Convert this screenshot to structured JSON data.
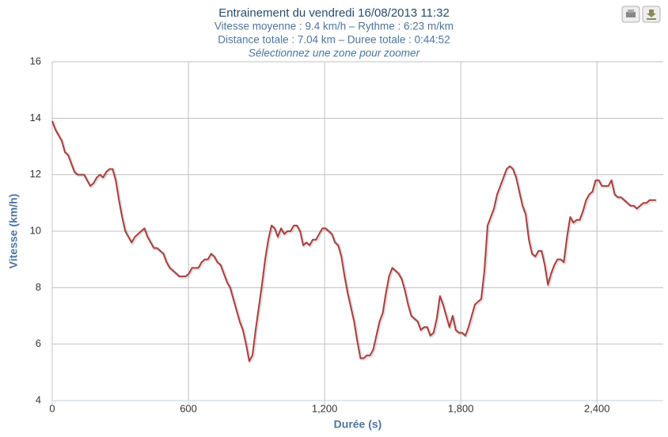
{
  "chart_data": {
    "type": "line",
    "title": "Entrainement du vendredi 16/08/2013 11:32",
    "subtitle": [
      "Vitesse moyenne : 9.4 km/h – Rythme : 6:23 m/km",
      "Distance totale : 7.04 km – Duree totale : 0:44:52",
      "Sélectionnez une zone pour zoomer"
    ],
    "x_label": "Durée (s)",
    "y_label": "Vitesse (km/h)",
    "xlim": [
      0,
      2692
    ],
    "xticks": [
      0,
      600,
      {
        "value": 1200,
        "label": "1,200"
      },
      {
        "value": 1800,
        "label": "1,800"
      },
      {
        "value": 2400,
        "label": "2,400"
      }
    ],
    "ylim": [
      4,
      16
    ],
    "yticks": [
      4,
      6,
      8,
      10,
      12,
      14,
      16
    ],
    "grid": true,
    "color": "#aa3f3c",
    "x": [
      0,
      14,
      28,
      42,
      56,
      70,
      84,
      98,
      112,
      126,
      140,
      154,
      168,
      182,
      196,
      210,
      224,
      238,
      252,
      266,
      280,
      294,
      308,
      322,
      336,
      350,
      364,
      378,
      392,
      406,
      420,
      434,
      448,
      462,
      476,
      490,
      504,
      518,
      532,
      546,
      560,
      574,
      588,
      602,
      616,
      630,
      644,
      658,
      672,
      686,
      700,
      714,
      728,
      742,
      756,
      770,
      784,
      798,
      812,
      826,
      840,
      854,
      868,
      882,
      896,
      910,
      924,
      938,
      952,
      966,
      980,
      994,
      1008,
      1022,
      1036,
      1050,
      1064,
      1078,
      1092,
      1106,
      1120,
      1134,
      1148,
      1162,
      1176,
      1190,
      1204,
      1218,
      1232,
      1246,
      1260,
      1274,
      1288,
      1302,
      1316,
      1330,
      1344,
      1358,
      1372,
      1386,
      1400,
      1414,
      1428,
      1442,
      1456,
      1470,
      1484,
      1498,
      1512,
      1526,
      1540,
      1554,
      1568,
      1582,
      1596,
      1610,
      1624,
      1638,
      1652,
      1666,
      1680,
      1694,
      1708,
      1722,
      1736,
      1750,
      1764,
      1778,
      1792,
      1806,
      1820,
      1834,
      1848,
      1862,
      1876,
      1890,
      1904,
      1918,
      1932,
      1946,
      1960,
      1974,
      1988,
      2002,
      2016,
      2030,
      2044,
      2058,
      2072,
      2086,
      2100,
      2114,
      2128,
      2142,
      2156,
      2170,
      2184,
      2198,
      2212,
      2226,
      2240,
      2254,
      2268,
      2282,
      2296,
      2310,
      2324,
      2338,
      2352,
      2366,
      2380,
      2394,
      2408,
      2422,
      2436,
      2450,
      2464,
      2478,
      2492,
      2506,
      2520,
      2534,
      2548,
      2562,
      2576,
      2590,
      2604,
      2618,
      2632,
      2646,
      2660
    ],
    "values": [
      13.9,
      13.6,
      13.4,
      13.2,
      12.8,
      12.7,
      12.4,
      12.1,
      12.0,
      12.0,
      12.0,
      11.8,
      11.6,
      11.7,
      11.9,
      12.0,
      11.9,
      12.1,
      12.2,
      12.2,
      11.8,
      11.1,
      10.5,
      10.0,
      9.8,
      9.6,
      9.8,
      9.9,
      10.0,
      10.1,
      9.8,
      9.6,
      9.4,
      9.4,
      9.3,
      9.2,
      8.9,
      8.7,
      8.6,
      8.5,
      8.4,
      8.4,
      8.4,
      8.5,
      8.7,
      8.7,
      8.7,
      8.9,
      9.0,
      9.0,
      9.2,
      9.1,
      8.9,
      8.8,
      8.5,
      8.2,
      8.0,
      7.6,
      7.2,
      6.8,
      6.5,
      6.0,
      5.4,
      5.6,
      6.5,
      7.3,
      8.1,
      9.0,
      9.7,
      10.2,
      10.1,
      9.8,
      10.1,
      9.9,
      10.0,
      10.0,
      10.2,
      10.2,
      10.0,
      9.5,
      9.6,
      9.5,
      9.7,
      9.7,
      9.9,
      10.1,
      10.1,
      10.0,
      9.9,
      9.6,
      9.5,
      9.1,
      8.4,
      7.8,
      7.3,
      6.8,
      6.1,
      5.5,
      5.5,
      5.6,
      5.6,
      5.8,
      6.3,
      6.8,
      7.1,
      7.8,
      8.4,
      8.7,
      8.6,
      8.5,
      8.3,
      7.9,
      7.4,
      7.0,
      6.9,
      6.8,
      6.5,
      6.6,
      6.6,
      6.3,
      6.4,
      6.9,
      7.7,
      7.4,
      7.0,
      6.6,
      7.0,
      6.5,
      6.4,
      6.4,
      6.3,
      6.6,
      7.0,
      7.4,
      7.5,
      7.6,
      8.6,
      10.2,
      10.5,
      10.8,
      11.3,
      11.6,
      11.9,
      12.2,
      12.3,
      12.2,
      11.9,
      11.4,
      10.9,
      10.6,
      9.7,
      9.2,
      9.1,
      9.3,
      9.3,
      8.8,
      8.1,
      8.5,
      8.8,
      9.0,
      9.0,
      8.9,
      9.8,
      10.5,
      10.3,
      10.4,
      10.4,
      10.7,
      11.1,
      11.3,
      11.4,
      11.8,
      11.8,
      11.6,
      11.6,
      11.6,
      11.8,
      11.3,
      11.2,
      11.2,
      11.1,
      11.0,
      10.9,
      10.9,
      10.8,
      10.9,
      11.0,
      11.0,
      11.1,
      11.1,
      11.1
    ]
  }
}
